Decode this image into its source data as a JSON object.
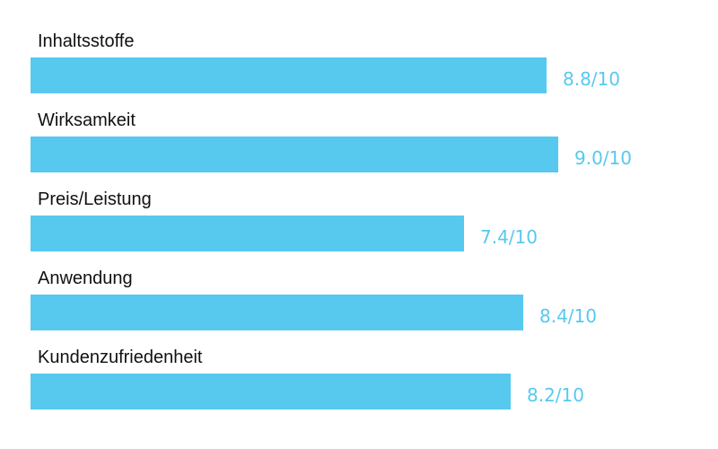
{
  "colors": {
    "bar": "#57c9ef",
    "value_text": "#57c9ef",
    "label_text": "#111111"
  },
  "chart_data": {
    "type": "bar",
    "orientation": "horizontal",
    "categories": [
      "Inhaltsstoffe",
      "Wirksamkeit",
      "Preis/Leistung",
      "Anwendung",
      "Kundenzufriedenheit"
    ],
    "values": [
      8.8,
      9.0,
      7.4,
      8.4,
      8.2
    ],
    "value_labels": [
      "8.8/10",
      "9.0/10",
      "7.4/10",
      "8.4/10",
      "8.2/10"
    ],
    "xlim": [
      0,
      10
    ],
    "grid": false,
    "legend": "none"
  }
}
